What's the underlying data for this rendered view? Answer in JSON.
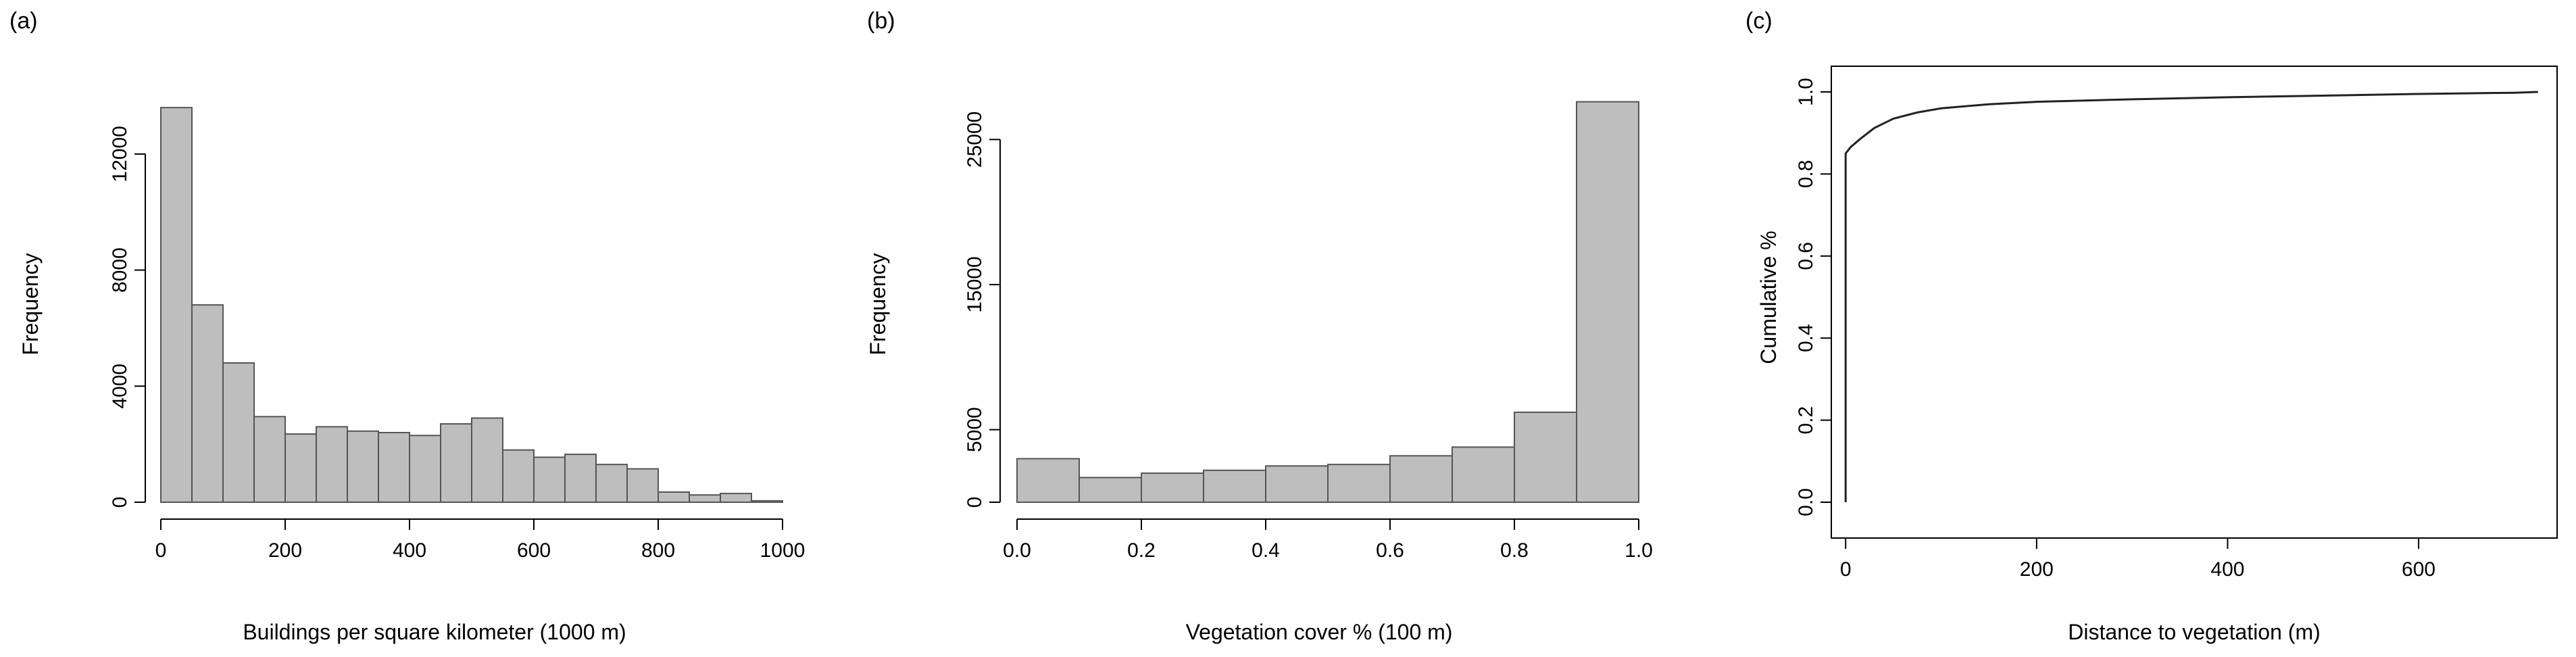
{
  "chart_data": [
    {
      "type": "bar",
      "panel_label": "(a)",
      "xlabel": "Buildings per square kilometer (1000 m)",
      "ylabel": "Frequency",
      "bin_edges": [
        0,
        50,
        100,
        150,
        200,
        250,
        300,
        350,
        400,
        450,
        500,
        550,
        600,
        650,
        700,
        750,
        800,
        850,
        900,
        950,
        1000
      ],
      "values": [
        13600,
        6800,
        4800,
        2950,
        2350,
        2600,
        2450,
        2400,
        2300,
        2700,
        2900,
        1800,
        1550,
        1650,
        1300,
        1150,
        350,
        250,
        300,
        50
      ],
      "xlim": [
        0,
        1000
      ],
      "ylim": [
        0,
        14000
      ],
      "xticks": [
        0,
        200,
        400,
        600,
        800,
        1000
      ],
      "yticks": [
        0,
        4000,
        8000,
        12000
      ],
      "xtick_labels": [
        "0",
        "200",
        "400",
        "600",
        "800",
        "1000"
      ],
      "ytick_labels": [
        "0",
        "4000",
        "8000",
        "12000"
      ]
    },
    {
      "type": "bar",
      "panel_label": "(b)",
      "xlabel": "Vegetation cover % (100 m)",
      "ylabel": "Frequency",
      "bin_edges": [
        0.0,
        0.1,
        0.2,
        0.3,
        0.4,
        0.5,
        0.6,
        0.7,
        0.8,
        0.9,
        1.0
      ],
      "values": [
        3000,
        1700,
        2000,
        2200,
        2500,
        2600,
        3200,
        3800,
        6200,
        27600
      ],
      "xlim": [
        0,
        1
      ],
      "ylim": [
        0,
        28000
      ],
      "xticks": [
        0.0,
        0.2,
        0.4,
        0.6,
        0.8,
        1.0
      ],
      "yticks": [
        0,
        5000,
        15000,
        25000
      ],
      "xtick_labels": [
        "0.0",
        "0.2",
        "0.4",
        "0.6",
        "0.8",
        "1.0"
      ],
      "ytick_labels": [
        "0",
        "5000",
        "15000",
        "25000"
      ]
    },
    {
      "type": "line",
      "panel_label": "(c)",
      "xlabel": "Distance to vegetation (m)",
      "ylabel": "Cumulative %",
      "series": [
        {
          "x": [
            0,
            0,
            5,
            15,
            30,
            50,
            75,
            100,
            150,
            200,
            300,
            400,
            500,
            600,
            700,
            725
          ],
          "y": [
            0.0,
            0.85,
            0.865,
            0.885,
            0.912,
            0.935,
            0.95,
            0.96,
            0.97,
            0.976,
            0.982,
            0.987,
            0.991,
            0.995,
            0.998,
            1.0
          ]
        }
      ],
      "xlim": [
        -15,
        745
      ],
      "ylim": [
        0,
        1.0
      ],
      "xticks": [
        0,
        200,
        400,
        600
      ],
      "yticks": [
        0.0,
        0.2,
        0.4,
        0.6,
        0.8,
        1.0
      ],
      "xtick_labels": [
        "0",
        "200",
        "400",
        "600"
      ],
      "ytick_labels": [
        "0.0",
        "0.2",
        "0.4",
        "0.6",
        "0.8",
        "1.0"
      ]
    }
  ]
}
